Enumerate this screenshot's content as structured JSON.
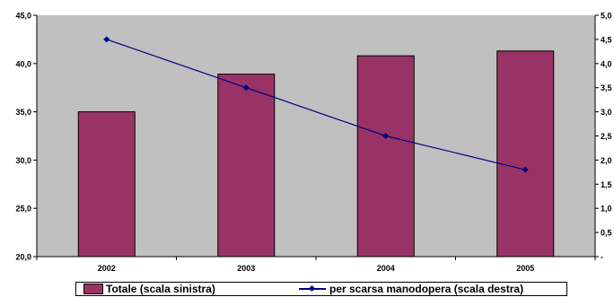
{
  "chart_data": {
    "type": "bar",
    "categories": [
      "2002",
      "2003",
      "2004",
      "2005"
    ],
    "series": [
      {
        "name": "Totale (scala sinistra)",
        "type": "bar",
        "axis": "left",
        "values": [
          35.0,
          38.9,
          40.8,
          41.3
        ]
      },
      {
        "name": "per scarsa manodopera (scala destra)",
        "type": "line",
        "axis": "right",
        "values": [
          4.5,
          3.5,
          2.5,
          1.8
        ]
      }
    ],
    "y_left": {
      "range": [
        20,
        45
      ],
      "ticks": [
        "20,0",
        "25,0",
        "30,0",
        "35,0",
        "40,0",
        "45,0"
      ]
    },
    "y_right": {
      "range": [
        0,
        5
      ],
      "ticks": [
        "-",
        "0,5",
        "1,0",
        "1,5",
        "2,0",
        "2,5",
        "3,0",
        "3,5",
        "4,0",
        "4,5",
        "5,0"
      ]
    },
    "title": "",
    "xlabel": "",
    "ylabel": "",
    "grid": false,
    "legend_position": "bottom",
    "colors": {
      "bar": "#993366",
      "line": "#000080",
      "plot_background": "#c0c0c0"
    }
  }
}
